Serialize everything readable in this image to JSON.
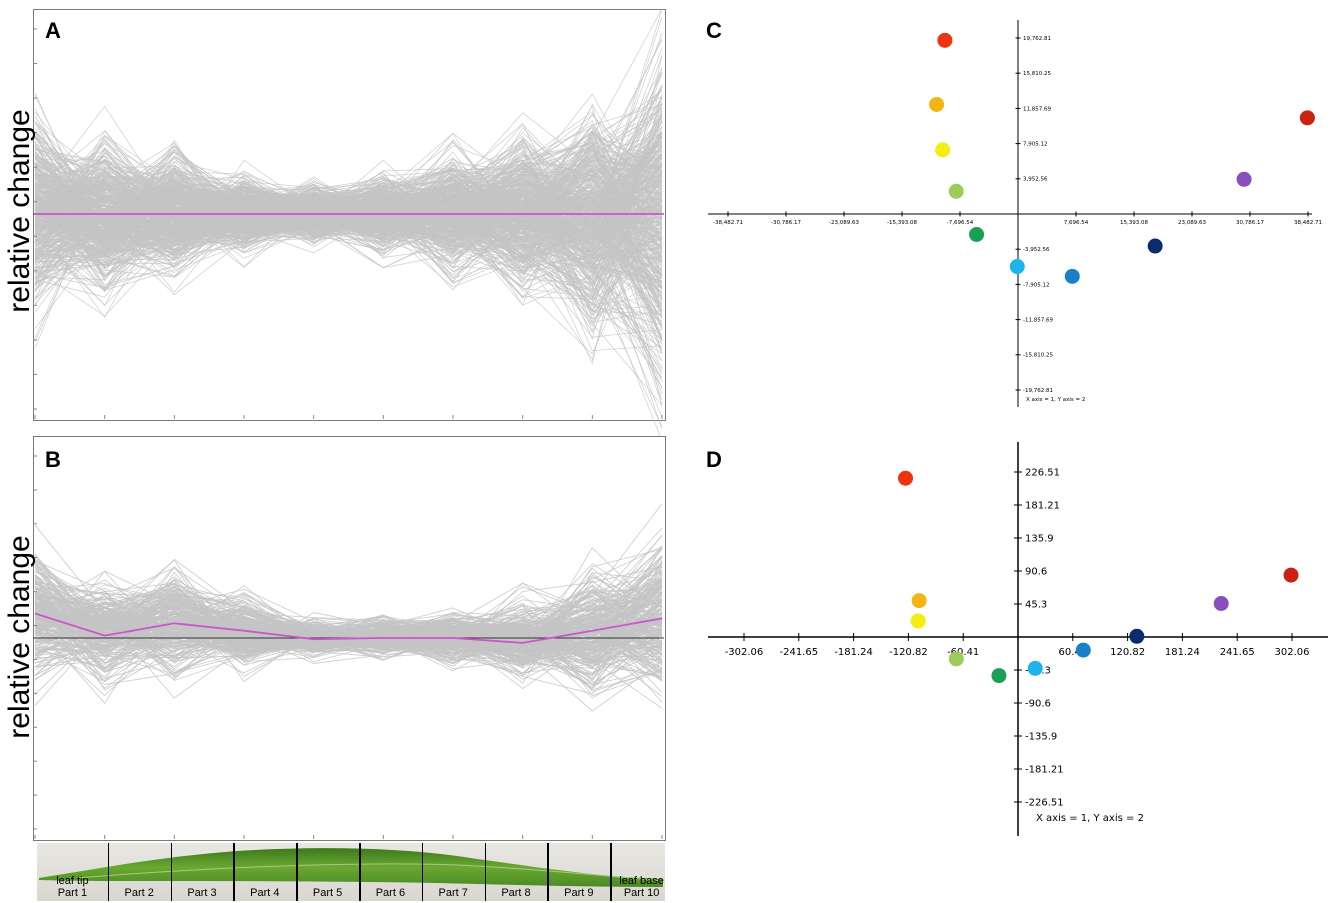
{
  "panels": {
    "a": {
      "label": "A",
      "ylabel": "relative change"
    },
    "b": {
      "label": "B",
      "ylabel": "relative change"
    },
    "c": {
      "label": "C"
    },
    "d": {
      "label": "D"
    }
  },
  "leaf": {
    "tip_label": "leaf tip",
    "base_label": "leaf base",
    "parts": [
      "Part 1",
      "Part 2",
      "Part 3",
      "Part 4",
      "Part 5",
      "Part 6",
      "Part 7",
      "Part 8",
      "Part 9",
      "Part 10"
    ],
    "color": "#5a9a2a"
  },
  "colors": {
    "line_gray": "#c4c4c4",
    "highlight": "#cc55cc",
    "axis": "#000000"
  },
  "chart_data": [
    {
      "panel": "A",
      "type": "line",
      "ylabel": "relative change",
      "categories": [
        "Part 1",
        "Part 2",
        "Part 3",
        "Part 4",
        "Part 5",
        "Part 6",
        "Part 7",
        "Part 8",
        "Part 9",
        "Part 10"
      ],
      "description_series": "many gray gene expression profiles, spread narrow at Part 4-5 and wide at Part 10",
      "spread_envelope": [
        0.45,
        0.36,
        0.27,
        0.18,
        0.13,
        0.18,
        0.27,
        0.36,
        0.5,
        0.78
      ],
      "highlight_series": [
        0,
        0,
        0,
        0,
        0,
        0,
        0,
        0,
        0,
        0
      ],
      "ylim": [
        -1,
        1
      ]
    },
    {
      "panel": "B",
      "type": "line",
      "ylabel": "relative change",
      "categories": [
        "Part 1",
        "Part 2",
        "Part 3",
        "Part 4",
        "Part 5",
        "Part 6",
        "Part 7",
        "Part 8",
        "Part 9",
        "Part 10"
      ],
      "spread_envelope": [
        0.3,
        0.22,
        0.24,
        0.16,
        0.08,
        0.09,
        0.12,
        0.18,
        0.26,
        0.36
      ],
      "offset_profile": [
        0.1,
        0.02,
        0.06,
        0.03,
        0,
        0,
        0,
        -0.01,
        0.03,
        0.08
      ],
      "highlight_series": [
        0.1,
        0.01,
        0.06,
        0.03,
        -0.005,
        0,
        0,
        -0.02,
        0.03,
        0.08
      ],
      "ylim": [
        -0.8,
        0.8
      ]
    },
    {
      "panel": "C",
      "type": "scatter",
      "xticks": [
        "-38,482.71",
        "-30,786.17",
        "-23,089.63",
        "-15,393.08",
        "-7,696.54",
        "7,696.54",
        "15,393.08",
        "23,089.63",
        "30,786.17",
        "38,482.71"
      ],
      "xtick_values": [
        -38482.71,
        -30786.17,
        -23089.63,
        -15393.08,
        -7696.54,
        7696.54,
        15393.08,
        23089.63,
        30786.17,
        38482.71
      ],
      "yticks": [
        "19,762.81",
        "15,810.25",
        "11,857.69",
        "7,905.12",
        "3,952.56",
        "-3,952.56",
        "-7,905.12",
        "-11,857.69",
        "-15,810.25",
        "-19,762.81"
      ],
      "ytick_values": [
        19762.81,
        15810.25,
        11857.69,
        7905.12,
        3952.56,
        -3952.56,
        -7905.12,
        -11857.69,
        -15810.25,
        -19762.81
      ],
      "xlim": [
        -41000,
        41000
      ],
      "ylim": [
        -22000,
        21000
      ],
      "annotation": "X axis = 1, Y axis = 2",
      "points": [
        {
          "x": -9700,
          "y": 19500,
          "color": "#ee3311"
        },
        {
          "x": -10800,
          "y": 12300,
          "color": "#f4b414"
        },
        {
          "x": -10000,
          "y": 7200,
          "color": "#f5ec10"
        },
        {
          "x": -8200,
          "y": 2550,
          "color": "#9ccc5a"
        },
        {
          "x": -5500,
          "y": -2300,
          "color": "#1aa055"
        },
        {
          "x": -100,
          "y": -5900,
          "color": "#1cb4ea"
        },
        {
          "x": 7200,
          "y": -7000,
          "color": "#1a80c8"
        },
        {
          "x": 18200,
          "y": -3600,
          "color": "#0b2b6e"
        },
        {
          "x": 30000,
          "y": 3900,
          "color": "#8a4fbf"
        },
        {
          "x": 38400,
          "y": 10800,
          "color": "#cc2211"
        }
      ]
    },
    {
      "panel": "D",
      "type": "scatter",
      "xticks": [
        "-302.06",
        "-241.65",
        "-181.24",
        "-120.82",
        "-60.41",
        "60.41",
        "120.82",
        "181.24",
        "241.65",
        "302.06"
      ],
      "xtick_values": [
        -302.06,
        -241.65,
        -181.24,
        -120.82,
        -60.41,
        60.41,
        120.82,
        181.24,
        241.65,
        302.06
      ],
      "yticks": [
        "226.51",
        "181.21",
        "135.9",
        "90.6",
        "45.3",
        "-45.3",
        "-90.6",
        "-135.9",
        "-181.21",
        "-226.51"
      ],
      "ytick_values": [
        226.51,
        181.21,
        135.9,
        90.6,
        45.3,
        -45.3,
        -90.6,
        -135.9,
        -181.21,
        -226.51
      ],
      "xlim": [
        -325,
        335
      ],
      "ylim": [
        -270,
        268
      ],
      "annotation": "X axis = 1, Y axis = 2",
      "points": [
        {
          "x": -124,
          "y": 218,
          "color": "#ee3311"
        },
        {
          "x": -109,
          "y": 50,
          "color": "#f4b414"
        },
        {
          "x": -110,
          "y": 22,
          "color": "#f5ec10"
        },
        {
          "x": -68,
          "y": -30,
          "color": "#9ccc5a"
        },
        {
          "x": -21,
          "y": -53,
          "color": "#1aa055"
        },
        {
          "x": 19,
          "y": -43,
          "color": "#1cb4ea"
        },
        {
          "x": 72,
          "y": -18,
          "color": "#1a80c8"
        },
        {
          "x": 131,
          "y": 1,
          "color": "#0b2b6e"
        },
        {
          "x": 224,
          "y": 46,
          "color": "#8a4fbf"
        },
        {
          "x": 301,
          "y": 85,
          "color": "#cc2211"
        }
      ]
    }
  ]
}
